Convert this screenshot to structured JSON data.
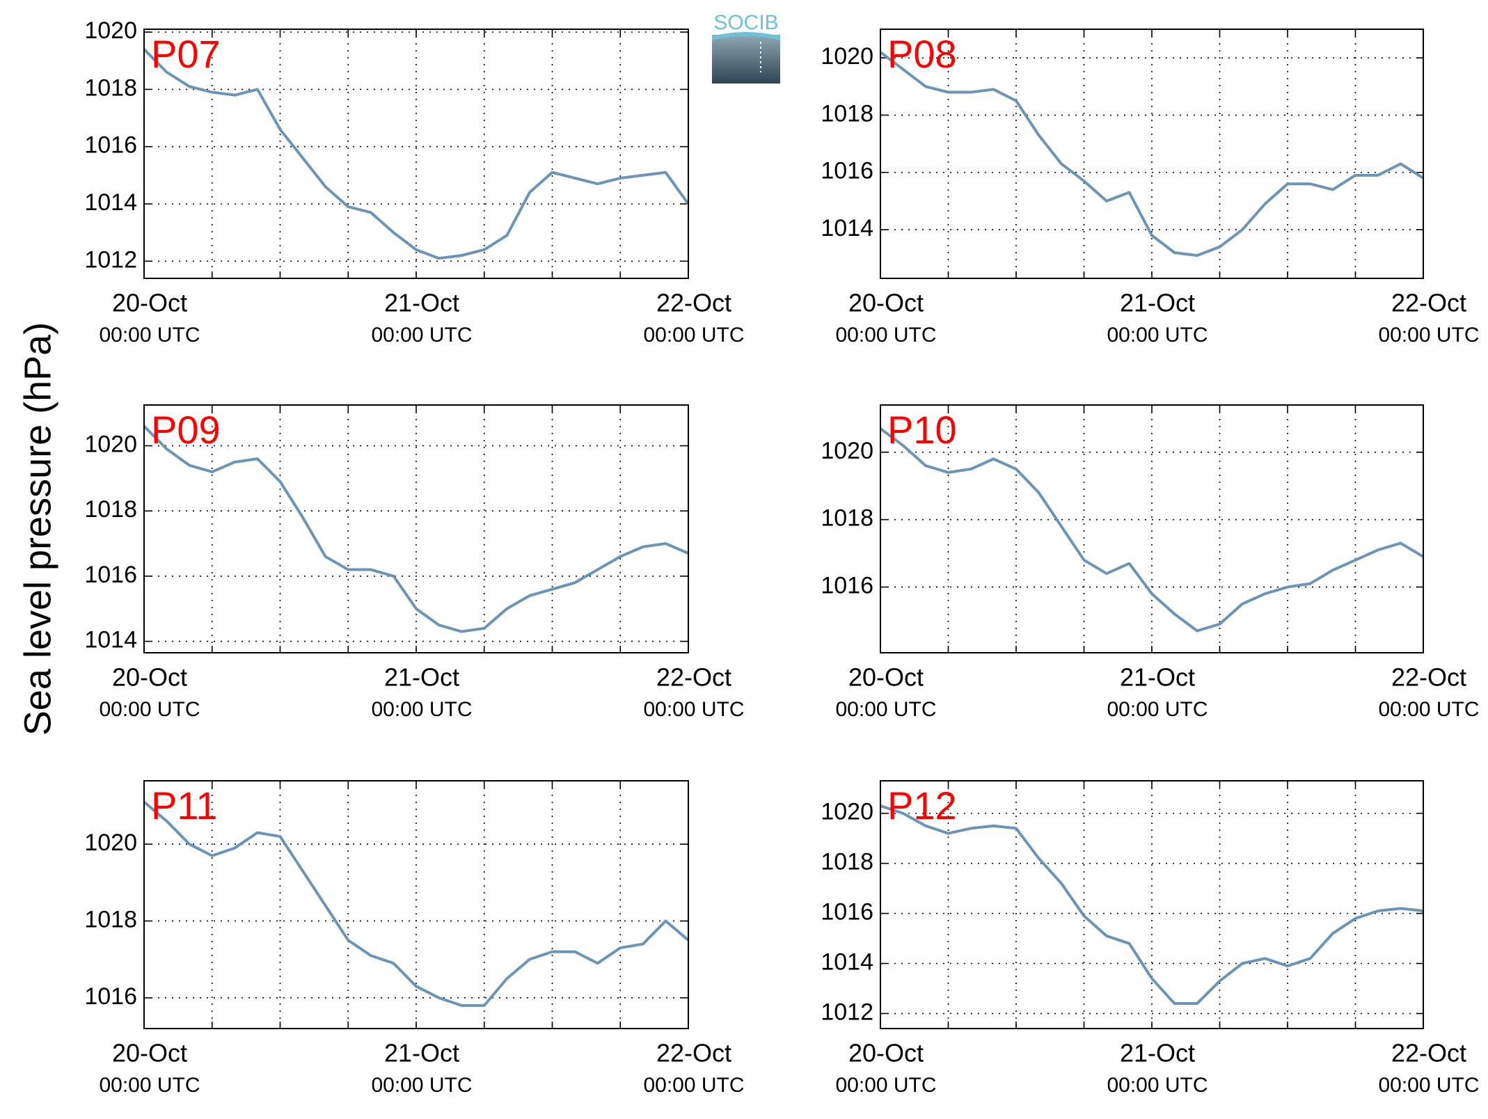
{
  "ylabel": "Sea level pressure (hPa)",
  "logo": "SOCIB",
  "chart_data": [
    {
      "type": "line",
      "title": "P07",
      "x": [
        0,
        2,
        4,
        6,
        8,
        10,
        12,
        14,
        16,
        18,
        20,
        22,
        24,
        26,
        28,
        30,
        32,
        34,
        36,
        38,
        40,
        42,
        44,
        46,
        48
      ],
      "series": [
        {
          "name": "P07",
          "color": "#6a94b8",
          "values": [
            1019.4,
            1018.6,
            1018.1,
            1017.9,
            1017.8,
            1018.0,
            1016.6,
            1015.6,
            1014.6,
            1013.9,
            1013.7,
            1013.0,
            1012.4,
            1012.1,
            1012.2,
            1012.4,
            1012.9,
            1014.4,
            1015.1,
            1014.9,
            1014.7,
            1014.9,
            1015.0,
            1015.1,
            1014.0
          ]
        }
      ],
      "xlim": [
        0,
        48
      ],
      "xticks": [
        {
          "value": 0,
          "label": [
            "20-Oct",
            "00:00 UTC"
          ]
        },
        {
          "value": 6,
          "label": null
        },
        {
          "value": 12,
          "label": null
        },
        {
          "value": 18,
          "label": null
        },
        {
          "value": 24,
          "label": [
            "21-Oct",
            "00:00 UTC"
          ]
        },
        {
          "value": 30,
          "label": null
        },
        {
          "value": 36,
          "label": null
        },
        {
          "value": 42,
          "label": null
        },
        {
          "value": 48,
          "label": [
            "22-Oct",
            "00:00 UTC"
          ]
        }
      ],
      "ylim": [
        1011.4,
        1020.1
      ],
      "yticks": [
        1012,
        1014,
        1016,
        1018,
        1020
      ],
      "grid": true
    },
    {
      "type": "line",
      "title": "P08",
      "x": [
        0,
        2,
        4,
        6,
        8,
        10,
        12,
        14,
        16,
        18,
        20,
        22,
        24,
        26,
        28,
        30,
        32,
        34,
        36,
        38,
        40,
        42,
        44,
        46,
        48
      ],
      "series": [
        {
          "name": "P08",
          "color": "#6a94b8",
          "values": [
            1020.2,
            1019.6,
            1019.0,
            1018.8,
            1018.8,
            1018.9,
            1018.5,
            1017.3,
            1016.3,
            1015.7,
            1015.0,
            1015.3,
            1013.8,
            1013.2,
            1013.1,
            1013.4,
            1014.0,
            1014.9,
            1015.6,
            1015.6,
            1015.4,
            1015.9,
            1015.9,
            1016.3,
            1015.8
          ]
        }
      ],
      "xlim": [
        0,
        48
      ],
      "xticks": [
        {
          "value": 0,
          "label": [
            "20-Oct",
            "00:00 UTC"
          ]
        },
        {
          "value": 6,
          "label": null
        },
        {
          "value": 12,
          "label": null
        },
        {
          "value": 18,
          "label": null
        },
        {
          "value": 24,
          "label": [
            "21-Oct",
            "00:00 UTC"
          ]
        },
        {
          "value": 30,
          "label": null
        },
        {
          "value": 36,
          "label": null
        },
        {
          "value": 42,
          "label": null
        },
        {
          "value": 48,
          "label": [
            "22-Oct",
            "00:00 UTC"
          ]
        }
      ],
      "ylim": [
        1012.3,
        1021.0
      ],
      "yticks": [
        1014,
        1016,
        1018,
        1020
      ],
      "grid": true
    },
    {
      "type": "line",
      "title": "P09",
      "x": [
        0,
        2,
        4,
        6,
        8,
        10,
        12,
        14,
        16,
        18,
        20,
        22,
        24,
        26,
        28,
        30,
        32,
        34,
        36,
        38,
        40,
        42,
        44,
        46,
        48
      ],
      "series": [
        {
          "name": "P09",
          "color": "#6a94b8",
          "values": [
            1020.6,
            1019.9,
            1019.4,
            1019.2,
            1019.5,
            1019.6,
            1018.9,
            1017.8,
            1016.6,
            1016.2,
            1016.2,
            1016.0,
            1015.0,
            1014.5,
            1014.3,
            1014.4,
            1015.0,
            1015.4,
            1015.6,
            1015.8,
            1016.2,
            1016.6,
            1016.9,
            1017.0,
            1016.7
          ]
        }
      ],
      "xlim": [
        0,
        48
      ],
      "xticks": [
        {
          "value": 0,
          "label": [
            "20-Oct",
            "00:00 UTC"
          ]
        },
        {
          "value": 6,
          "label": null
        },
        {
          "value": 12,
          "label": null
        },
        {
          "value": 18,
          "label": null
        },
        {
          "value": 24,
          "label": [
            "21-Oct",
            "00:00 UTC"
          ]
        },
        {
          "value": 30,
          "label": null
        },
        {
          "value": 36,
          "label": null
        },
        {
          "value": 42,
          "label": null
        },
        {
          "value": 48,
          "label": [
            "22-Oct",
            "00:00 UTC"
          ]
        }
      ],
      "ylim": [
        1013.65,
        1021.25
      ],
      "yticks": [
        1014,
        1016,
        1018,
        1020
      ],
      "grid": true
    },
    {
      "type": "line",
      "title": "P10",
      "x": [
        0,
        2,
        4,
        6,
        8,
        10,
        12,
        14,
        16,
        18,
        20,
        22,
        24,
        26,
        28,
        30,
        32,
        34,
        36,
        38,
        40,
        42,
        44,
        46,
        48
      ],
      "series": [
        {
          "name": "P10",
          "color": "#6a94b8",
          "values": [
            1020.7,
            1020.2,
            1019.6,
            1019.4,
            1019.5,
            1019.8,
            1019.5,
            1018.8,
            1017.8,
            1016.8,
            1016.4,
            1016.7,
            1015.8,
            1015.2,
            1014.7,
            1014.9,
            1015.5,
            1015.8,
            1016.0,
            1016.1,
            1016.5,
            1016.8,
            1017.1,
            1017.3,
            1016.9
          ]
        }
      ],
      "xlim": [
        0,
        48
      ],
      "xticks": [
        {
          "value": 0,
          "label": [
            "20-Oct",
            "00:00 UTC"
          ]
        },
        {
          "value": 6,
          "label": null
        },
        {
          "value": 12,
          "label": null
        },
        {
          "value": 18,
          "label": null
        },
        {
          "value": 24,
          "label": [
            "21-Oct",
            "00:00 UTC"
          ]
        },
        {
          "value": 30,
          "label": null
        },
        {
          "value": 36,
          "label": null
        },
        {
          "value": 42,
          "label": null
        },
        {
          "value": 48,
          "label": [
            "22-Oct",
            "00:00 UTC"
          ]
        }
      ],
      "ylim": [
        1014.05,
        1021.4
      ],
      "yticks": [
        1016,
        1018,
        1020
      ],
      "grid": true
    },
    {
      "type": "line",
      "title": "P11",
      "x": [
        0,
        2,
        4,
        6,
        8,
        10,
        12,
        14,
        16,
        18,
        20,
        22,
        24,
        26,
        28,
        30,
        32,
        34,
        36,
        38,
        40,
        42,
        44,
        46,
        48
      ],
      "series": [
        {
          "name": "P11",
          "color": "#6a94b8",
          "values": [
            1021.1,
            1020.6,
            1020.0,
            1019.7,
            1019.9,
            1020.3,
            1020.2,
            1019.3,
            1018.4,
            1017.5,
            1017.1,
            1016.9,
            1016.3,
            1016.0,
            1015.8,
            1015.8,
            1016.5,
            1017.0,
            1017.2,
            1017.2,
            1016.9,
            1017.3,
            1017.4,
            1018.0,
            1017.5
          ]
        }
      ],
      "xlim": [
        0,
        48
      ],
      "xticks": [
        {
          "value": 0,
          "label": [
            "20-Oct",
            "00:00 UTC"
          ]
        },
        {
          "value": 6,
          "label": null
        },
        {
          "value": 12,
          "label": null
        },
        {
          "value": 18,
          "label": null
        },
        {
          "value": 24,
          "label": [
            "21-Oct",
            "00:00 UTC"
          ]
        },
        {
          "value": 30,
          "label": null
        },
        {
          "value": 36,
          "label": null
        },
        {
          "value": 42,
          "label": null
        },
        {
          "value": 48,
          "label": [
            "22-Oct",
            "00:00 UTC"
          ]
        }
      ],
      "ylim": [
        1015.2,
        1021.65
      ],
      "yticks": [
        1016,
        1018,
        1020
      ],
      "grid": true
    },
    {
      "type": "line",
      "title": "P12",
      "x": [
        0,
        2,
        4,
        6,
        8,
        10,
        12,
        14,
        16,
        18,
        20,
        22,
        24,
        26,
        28,
        30,
        32,
        34,
        36,
        38,
        40,
        42,
        44,
        46,
        48
      ],
      "series": [
        {
          "name": "P12",
          "color": "#6a94b8",
          "values": [
            1020.3,
            1020.0,
            1019.5,
            1019.2,
            1019.4,
            1019.5,
            1019.4,
            1018.2,
            1017.2,
            1015.9,
            1015.1,
            1014.8,
            1013.4,
            1012.4,
            1012.4,
            1013.3,
            1014.0,
            1014.2,
            1013.9,
            1014.2,
            1015.2,
            1015.8,
            1016.1,
            1016.2,
            1016.1
          ]
        }
      ],
      "xlim": [
        0,
        48
      ],
      "xticks": [
        {
          "value": 0,
          "label": [
            "20-Oct",
            "00:00 UTC"
          ]
        },
        {
          "value": 6,
          "label": null
        },
        {
          "value": 12,
          "label": null
        },
        {
          "value": 18,
          "label": null
        },
        {
          "value": 24,
          "label": [
            "21-Oct",
            "00:00 UTC"
          ]
        },
        {
          "value": 30,
          "label": null
        },
        {
          "value": 36,
          "label": null
        },
        {
          "value": 42,
          "label": null
        },
        {
          "value": 48,
          "label": [
            "22-Oct",
            "00:00 UTC"
          ]
        }
      ],
      "ylim": [
        1011.4,
        1021.3
      ],
      "yticks": [
        1012,
        1014,
        1016,
        1018,
        1020
      ],
      "grid": true
    }
  ]
}
